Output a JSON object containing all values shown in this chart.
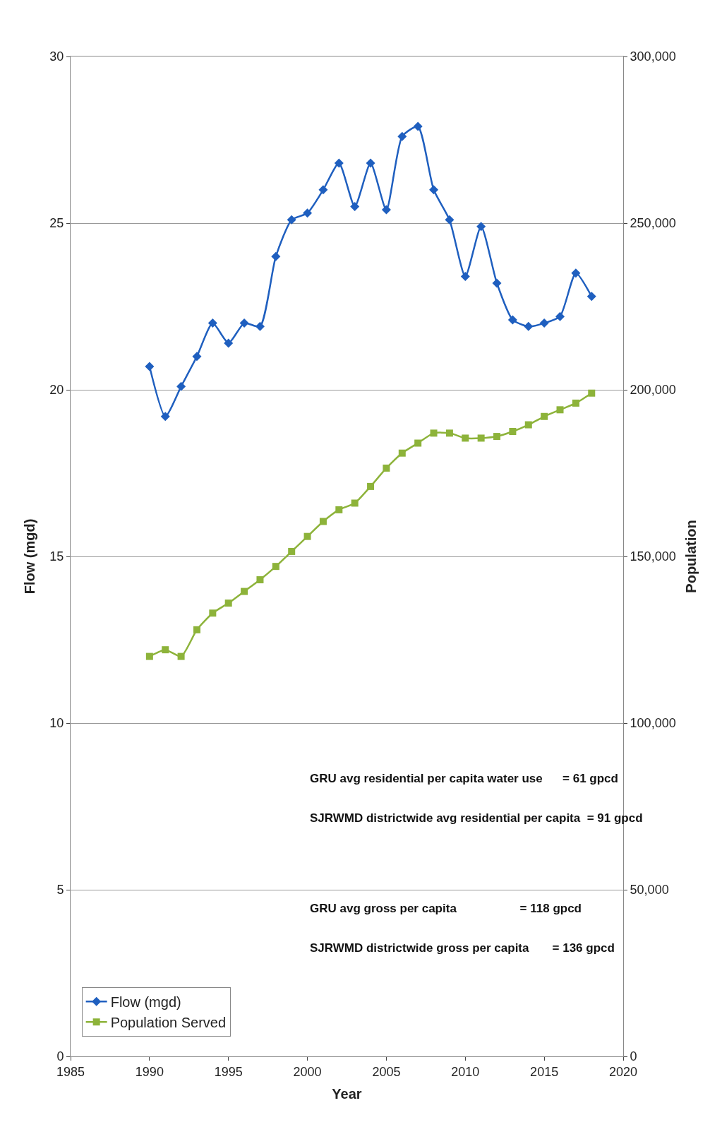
{
  "chart_data": {
    "type": "line",
    "xlabel": "Year",
    "ylabel": "Flow (mgd)",
    "y2label": "Population",
    "xlim": [
      1985,
      2020
    ],
    "xticks": [
      1985,
      1990,
      1995,
      2000,
      2005,
      2010,
      2015,
      2020
    ],
    "ylim": [
      0,
      30
    ],
    "yticks": [
      0,
      5,
      10,
      15,
      20,
      25,
      30
    ],
    "y2lim": [
      0,
      300000
    ],
    "y2ticks": [
      {
        "value": 0,
        "label": "0"
      },
      {
        "value": 50000,
        "label": "50,000"
      },
      {
        "value": 100000,
        "label": "100,000"
      },
      {
        "value": 150000,
        "label": "150,000"
      },
      {
        "value": 200000,
        "label": "200,000"
      },
      {
        "value": 250000,
        "label": "250,000"
      },
      {
        "value": 300000,
        "label": "300,000"
      }
    ],
    "x": [
      1990,
      1991,
      1992,
      1993,
      1994,
      1995,
      1996,
      1997,
      1998,
      1999,
      2000,
      2001,
      2002,
      2003,
      2004,
      2005,
      2006,
      2007,
      2008,
      2009,
      2010,
      2011,
      2012,
      2013,
      2014,
      2015,
      2016,
      2017,
      2018
    ],
    "series": [
      {
        "name": "Flow (mgd)",
        "color": "#1f5fbf",
        "marker": "diamond",
        "values": [
          20.7,
          19.2,
          20.1,
          21.0,
          22.0,
          21.4,
          22.0,
          21.9,
          24.0,
          25.1,
          25.3,
          26.0,
          26.8,
          25.5,
          26.8,
          25.4,
          27.6,
          27.9,
          26.0,
          25.1,
          23.4,
          24.9,
          23.2,
          22.1,
          21.9,
          22.0,
          22.2,
          23.5,
          22.8
        ]
      },
      {
        "name": "Population Served",
        "color": "#8db33a",
        "marker": "square",
        "axis": "y2",
        "values": [
          120000,
          122000,
          120000,
          128000,
          133000,
          136000,
          139500,
          143000,
          147000,
          151500,
          156000,
          160500,
          164000,
          166000,
          171000,
          176500,
          181000,
          184000,
          187000,
          187000,
          185500,
          185500,
          186000,
          187500,
          189500,
          192000,
          194000,
          196000,
          199000
        ]
      }
    ],
    "annotations": [
      "GRU avg residential per capita water use      = 61 gpcd",
      "SJRWMD districtwide avg residential per capita  = 91 gpcd",
      "GRU avg gross per capita                   = 118 gpcd",
      "SJRWMD districtwide gross per capita       = 136 gpcd"
    ],
    "grid": "y",
    "legend": "bottom left",
    "line_style": "solid"
  }
}
